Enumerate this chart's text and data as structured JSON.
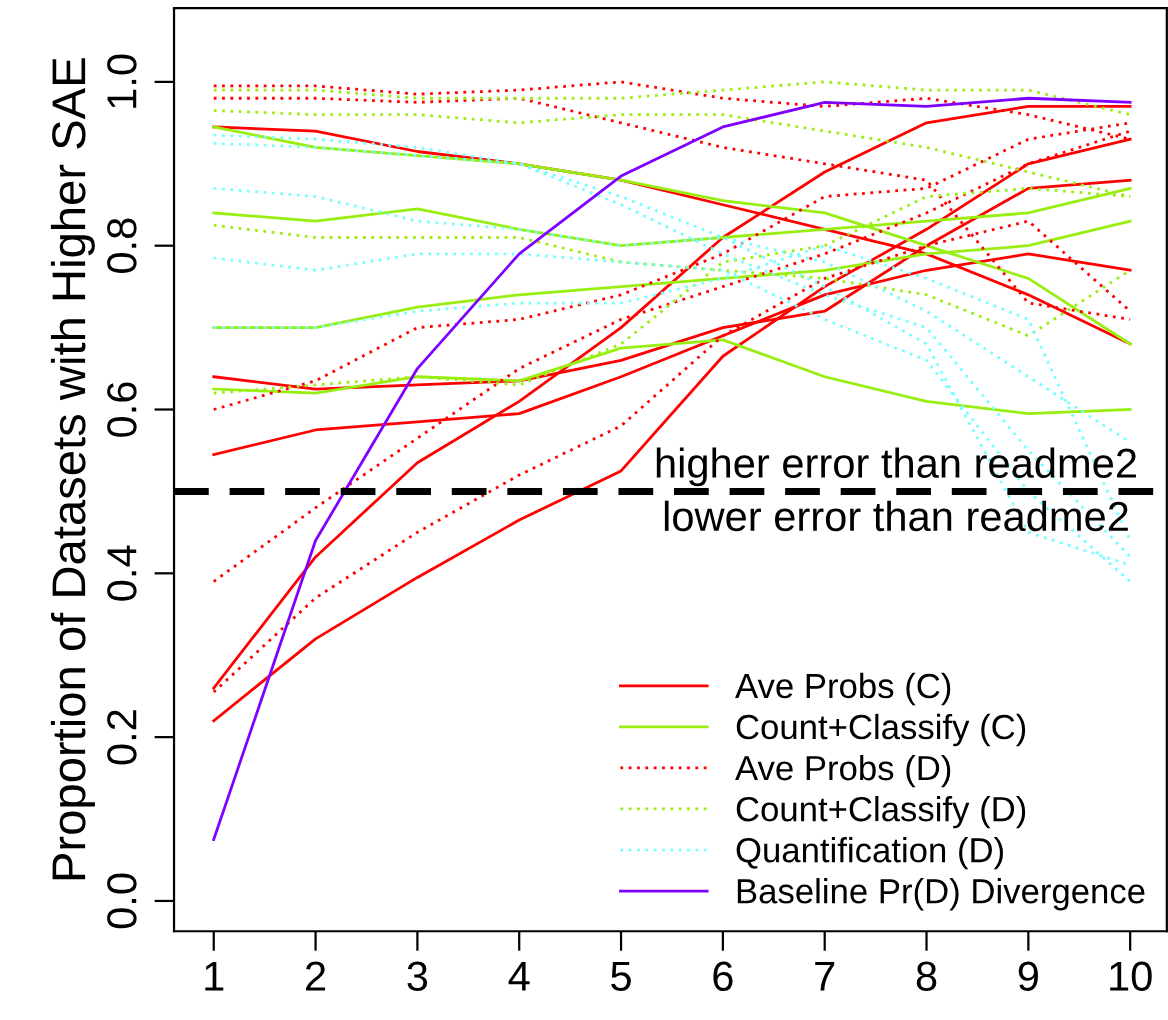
{
  "chart_data": {
    "type": "line",
    "ylabel": "Proportion of Datasets with Higher SAE",
    "x": [
      1,
      2,
      3,
      4,
      5,
      6,
      7,
      8,
      9,
      10
    ],
    "xlim": [
      0.61,
      10.36
    ],
    "xticks": [
      1,
      2,
      3,
      4,
      5,
      6,
      7,
      8,
      9,
      10
    ],
    "ylim": [
      -0.037,
      1.09
    ],
    "yticks": [
      {
        "value": 0,
        "label": "0.0"
      },
      0.2,
      0.4,
      0.6,
      0.8,
      {
        "value": 1,
        "label": "1.0"
      }
    ],
    "grid": false,
    "legend": "bottom right",
    "ref_lines": [
      {
        "axis": "y",
        "value": 0.5,
        "color": "#000000",
        "line_style": "dashed"
      }
    ],
    "annotations": [
      "higher error than readme2",
      "lower error than readme2"
    ],
    "series": [
      {
        "name": "Ave Probs (C)",
        "color": "#ff0000",
        "line_style": "solid",
        "values": [
          0.26,
          0.42,
          0.535,
          0.61,
          0.7,
          0.81,
          0.89,
          0.95,
          0.97,
          0.97
        ]
      },
      {
        "color": "#ff0000",
        "line_style": "solid",
        "values": [
          0.22,
          0.32,
          0.395,
          0.465,
          0.525,
          0.665,
          0.75,
          0.82,
          0.9,
          0.93
        ]
      },
      {
        "color": "#ff0000",
        "line_style": "solid",
        "values": [
          0.545,
          0.575,
          0.585,
          0.595,
          0.64,
          0.69,
          0.74,
          0.77,
          0.79,
          0.77
        ]
      },
      {
        "color": "#ff0000",
        "line_style": "solid",
        "values": [
          0.64,
          0.625,
          0.63,
          0.635,
          0.66,
          0.7,
          0.72,
          0.8,
          0.87,
          0.88
        ]
      },
      {
        "color": "#ff0000",
        "line_style": "solid",
        "values": [
          0.945,
          0.94,
          0.915,
          0.9,
          0.88,
          0.85,
          0.82,
          0.79,
          0.74,
          0.68
        ]
      },
      {
        "name": "Count+Classify (C)",
        "color": "#99ee11",
        "line_style": "solid",
        "values": [
          0.945,
          0.92,
          0.91,
          0.9,
          0.88,
          0.855,
          0.84,
          0.8,
          0.76,
          0.68
        ]
      },
      {
        "color": "#99ee11",
        "line_style": "solid",
        "values": [
          0.84,
          0.83,
          0.845,
          0.82,
          0.8,
          0.81,
          0.82,
          0.83,
          0.84,
          0.87
        ]
      },
      {
        "color": "#99ee11",
        "line_style": "solid",
        "values": [
          0.7,
          0.7,
          0.725,
          0.74,
          0.75,
          0.76,
          0.77,
          0.79,
          0.8,
          0.83
        ]
      },
      {
        "color": "#99ee11",
        "line_style": "solid",
        "values": [
          0.625,
          0.62,
          0.64,
          0.635,
          0.675,
          0.685,
          0.64,
          0.61,
          0.595,
          0.6
        ]
      },
      {
        "name": "Ave Probs (D)",
        "color": "#ff0000",
        "line_style": "dotted",
        "values": [
          0.995,
          0.995,
          0.985,
          0.99,
          1.0,
          0.98,
          0.97,
          0.98,
          0.96,
          0.93
        ]
      },
      {
        "color": "#ff0000",
        "line_style": "dotted",
        "values": [
          0.39,
          0.48,
          0.565,
          0.65,
          0.71,
          0.75,
          0.79,
          0.84,
          0.9,
          0.94
        ]
      },
      {
        "color": "#ff0000",
        "line_style": "dotted",
        "values": [
          0.6,
          0.635,
          0.7,
          0.71,
          0.74,
          0.79,
          0.86,
          0.87,
          0.93,
          0.95
        ]
      },
      {
        "color": "#ff0000",
        "line_style": "dotted",
        "values": [
          0.255,
          0.37,
          0.45,
          0.52,
          0.58,
          0.69,
          0.76,
          0.8,
          0.83,
          0.72
        ]
      },
      {
        "color": "#ff0000",
        "line_style": "dotted",
        "values": [
          0.98,
          0.98,
          0.975,
          0.98,
          0.95,
          0.92,
          0.9,
          0.88,
          0.73,
          0.71
        ]
      },
      {
        "name": "Count+Classify (D)",
        "color": "#99ee11",
        "line_style": "dotted",
        "values": [
          0.99,
          0.99,
          0.98,
          0.98,
          0.98,
          0.99,
          1.0,
          0.99,
          0.99,
          0.96
        ]
      },
      {
        "color": "#99ee11",
        "line_style": "dotted",
        "values": [
          0.965,
          0.96,
          0.96,
          0.95,
          0.96,
          0.96,
          0.94,
          0.92,
          0.89,
          0.86
        ]
      },
      {
        "color": "#99ee11",
        "line_style": "dotted",
        "values": [
          0.825,
          0.81,
          0.81,
          0.81,
          0.78,
          0.77,
          0.76,
          0.74,
          0.69,
          0.77
        ]
      },
      {
        "color": "#99ee11",
        "line_style": "dotted",
        "values": [
          0.62,
          0.63,
          0.64,
          0.63,
          0.68,
          0.78,
          0.8,
          0.86,
          0.87,
          0.86
        ]
      },
      {
        "name": "Quantification (D)",
        "color": "#77ffff",
        "line_style": "dotted",
        "values": [
          0.87,
          0.86,
          0.83,
          0.82,
          0.8,
          0.81,
          0.78,
          0.72,
          0.64,
          0.56
        ]
      },
      {
        "color": "#77ffff",
        "line_style": "dotted",
        "values": [
          0.935,
          0.93,
          0.92,
          0.9,
          0.85,
          0.79,
          0.74,
          0.7,
          0.55,
          0.42
        ]
      },
      {
        "color": "#77ffff",
        "line_style": "dotted",
        "values": [
          0.785,
          0.77,
          0.79,
          0.79,
          0.78,
          0.77,
          0.71,
          0.66,
          0.5,
          0.39
        ]
      },
      {
        "color": "#77ffff",
        "line_style": "dotted",
        "values": [
          0.7,
          0.7,
          0.72,
          0.73,
          0.73,
          0.76,
          0.8,
          0.76,
          0.71,
          0.44
        ]
      },
      {
        "color": "#77ffff",
        "line_style": "dotted",
        "values": [
          0.925,
          0.92,
          0.91,
          0.9,
          0.86,
          0.81,
          0.75,
          0.68,
          0.45,
          0.41
        ]
      },
      {
        "name": "Baseline Pr(D) Divergence",
        "color": "#8000ff",
        "line_style": "solid",
        "values": [
          0.075,
          0.44,
          0.65,
          0.79,
          0.885,
          0.945,
          0.975,
          0.97,
          0.98,
          0.975
        ]
      }
    ]
  }
}
